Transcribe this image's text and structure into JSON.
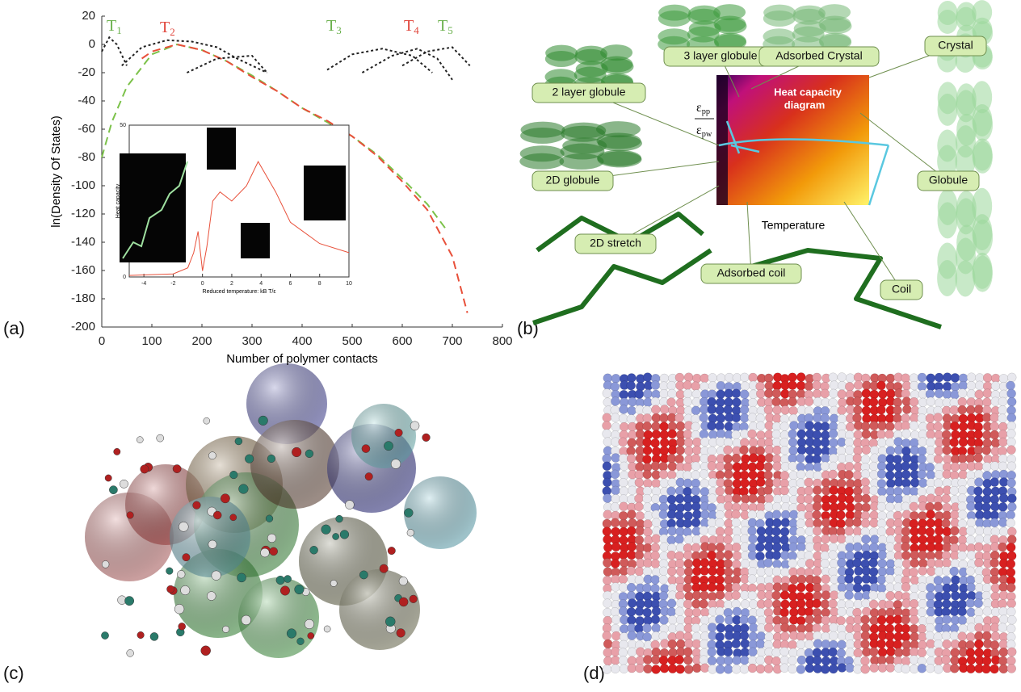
{
  "figure_labels": [
    "(a)",
    "(b)",
    "(c)",
    "(d)"
  ],
  "chart_data": [
    {
      "type": "line",
      "x_label": "Number of polymer contacts",
      "y_label": "ln(Density Of States)",
      "xlim": [
        0,
        800
      ],
      "xticks": [
        0,
        100,
        200,
        300,
        400,
        500,
        600,
        700,
        800
      ],
      "ylim": [
        -200,
        20
      ],
      "yticks": [
        20,
        0,
        -20,
        -40,
        -60,
        -80,
        -100,
        -120,
        -140,
        -160,
        -180,
        -200
      ],
      "annotations": [
        {
          "base": "T",
          "sub": "1",
          "color": "#6ab04c"
        },
        {
          "base": "T",
          "sub": "2",
          "color": "#e0443a"
        },
        {
          "base": "T",
          "sub": "3",
          "color": "#6ab04c"
        },
        {
          "base": "T",
          "sub": "4",
          "color": "#e0443a"
        },
        {
          "base": "T",
          "sub": "5",
          "color": "#6ab04c"
        }
      ],
      "series": [
        {
          "color": "#7cc24a",
          "dash": "10 6",
          "x": [
            0,
            20,
            50,
            100,
            150,
            200,
            250,
            300,
            350,
            400,
            450,
            500,
            550,
            600,
            650,
            690
          ],
          "values": [
            -80,
            -55,
            -30,
            -7,
            0,
            -4,
            -12,
            -22,
            -33,
            -45,
            -55,
            -65,
            -78,
            -95,
            -113,
            -132
          ]
        },
        {
          "color": "#e8503a",
          "dash": "10 6",
          "x": [
            80,
            100,
            150,
            200,
            250,
            300,
            350,
            400,
            450,
            500,
            550,
            600,
            650,
            700,
            730
          ],
          "values": [
            -10,
            -5,
            0,
            -4,
            -12,
            -23,
            -33,
            -45,
            -54,
            -65,
            -79,
            -97,
            -117,
            -150,
            -190
          ]
        },
        {
          "color": "#222",
          "dash": "3 3",
          "x": [
            0,
            15,
            30,
            50
          ],
          "values": [
            -5,
            5,
            0,
            -15
          ]
        },
        {
          "color": "#222",
          "dash": "3 3",
          "x": [
            40,
            80,
            130,
            180,
            230,
            270,
            330
          ],
          "values": [
            -15,
            -2,
            3,
            2,
            -2,
            -10,
            -20
          ]
        },
        {
          "color": "#222",
          "dash": "3 3",
          "x": [
            170,
            230,
            300,
            330
          ],
          "values": [
            -20,
            -10,
            -8,
            -20
          ]
        },
        {
          "color": "#222",
          "dash": "3 3",
          "x": [
            450,
            500,
            560,
            620,
            660
          ],
          "values": [
            -18,
            -7,
            -3,
            -8,
            -20
          ]
        },
        {
          "color": "#222",
          "dash": "3 3",
          "x": [
            520,
            580,
            630,
            670,
            700
          ],
          "values": [
            -20,
            -8,
            -3,
            -10,
            -25
          ]
        },
        {
          "color": "#222",
          "dash": "3 3",
          "x": [
            600,
            650,
            700,
            735
          ],
          "values": [
            -15,
            -5,
            -2,
            -15
          ]
        }
      ]
    },
    {
      "type": "line",
      "x_label": "Reduced temperature: kB T/ε",
      "y_label": "Heat capacity",
      "xlim": [
        -5,
        10
      ],
      "xticks": [
        -4,
        -2,
        0,
        2,
        4,
        6,
        8,
        10
      ],
      "ylim": [
        0,
        50
      ],
      "yticks": [
        0,
        50
      ],
      "series": [
        {
          "color": "#e8503a",
          "x": [
            -5,
            -2,
            -1,
            -0.6,
            -0.3,
            0,
            0.3,
            0.7,
            1.2,
            2,
            3,
            3.8,
            5,
            6,
            8,
            10
          ],
          "values": [
            0.5,
            1,
            3,
            8,
            15,
            2,
            10,
            25,
            28,
            25,
            30,
            38,
            28,
            18,
            11,
            8
          ]
        }
      ]
    }
  ],
  "panel_b": {
    "labels": [
      "3 layer globule",
      "Adsorbed Crystal",
      "Crystal",
      "2 layer globule",
      "Globule",
      "2D globule",
      "2D stretch",
      "Adsorbed coil",
      "Coil"
    ],
    "heatmap_title": [
      "Heat capacity",
      "diagram"
    ],
    "x_label": "Temperature",
    "y_label": [
      {
        "base": "ε",
        "sub": "pp"
      },
      {
        "base": "ε",
        "sub": "pw"
      }
    ]
  }
}
